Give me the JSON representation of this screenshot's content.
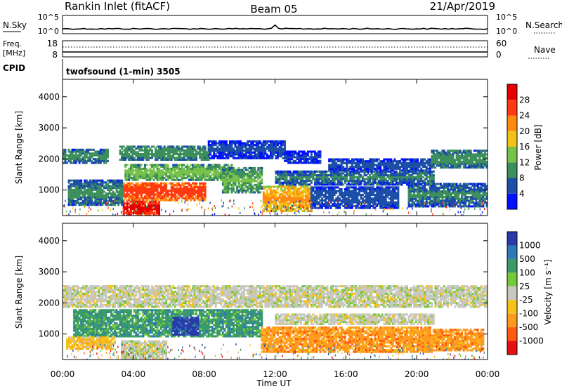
{
  "header": {
    "station": "Rankin Inlet (fitACF)",
    "beam": "Beam 05",
    "date": "21/Apr/2019"
  },
  "strip": {
    "nsky_label": "N.Sky",
    "nsky_ticks": [
      "10^5",
      "10^0"
    ],
    "nsearch_label": "N.Search",
    "nsearch_ticks": [
      "10^5",
      "10^0"
    ],
    "freq_label_1": "Freq.",
    "freq_label_2": "[MHz]",
    "freq_ticks": [
      "18",
      "8"
    ],
    "nave_label": "Nave",
    "nave_ticks": [
      "60",
      "0"
    ],
    "cpid_label": "CPID",
    "cpid_value": "twofsound (1-min) 3505"
  },
  "chart_data": [
    {
      "type": "heatmap",
      "panel": "power",
      "ylabel": "Slant Range [km]",
      "yticks": [
        "1000",
        "2000",
        "3000",
        "4000"
      ],
      "ylim": [
        180,
        4560
      ],
      "xlim_hours": [
        0,
        24
      ],
      "colorbar_label": "Power [dB]",
      "colorbar_ticks": [
        "4",
        "8",
        "12",
        "16",
        "20",
        "24",
        "28"
      ],
      "colorbar_range": [
        0,
        32
      ],
      "colors": [
        "#0010ff",
        "#1d4fa8",
        "#3d8f5c",
        "#78c24c",
        "#f2c21a",
        "#ff8a10",
        "#ff3a10",
        "#e60000"
      ],
      "regions": [
        {
          "t0": 0.0,
          "t1": 2.6,
          "r0": 1850,
          "r1": 2300,
          "level": 10
        },
        {
          "t0": 3.2,
          "t1": 8.2,
          "r0": 1950,
          "r1": 2400,
          "level": 12
        },
        {
          "t0": 8.2,
          "t1": 12.5,
          "r0": 2000,
          "r1": 2600,
          "level": 6
        },
        {
          "t0": 12.5,
          "t1": 14.5,
          "r0": 1850,
          "r1": 2250,
          "level": 5
        },
        {
          "t0": 15.0,
          "t1": 20.8,
          "r0": 1600,
          "r1": 2000,
          "level": 7
        },
        {
          "t0": 20.8,
          "t1": 24.0,
          "r0": 1700,
          "r1": 2250,
          "level": 11
        },
        {
          "t0": 3.5,
          "t1": 9.5,
          "r0": 1300,
          "r1": 1800,
          "level": 14
        },
        {
          "t0": 12.0,
          "t1": 21.0,
          "r0": 1150,
          "r1": 1600,
          "level": 9
        },
        {
          "t0": 3.3,
          "t1": 8.0,
          "r0": 650,
          "r1": 1250,
          "level": 27
        },
        {
          "t0": 3.4,
          "t1": 5.4,
          "r0": 180,
          "r1": 650,
          "level": 30
        },
        {
          "t0": 0.3,
          "t1": 3.4,
          "r0": 500,
          "r1": 1300,
          "level": 10
        },
        {
          "t0": 11.3,
          "t1": 14.0,
          "r0": 300,
          "r1": 1100,
          "level": 21
        },
        {
          "t0": 14.0,
          "t1": 19.0,
          "r0": 400,
          "r1": 1100,
          "level": 8
        },
        {
          "t0": 19.5,
          "t1": 24.0,
          "r0": 450,
          "r1": 1200,
          "level": 9
        },
        {
          "t0": 9.0,
          "t1": 11.2,
          "r0": 900,
          "r1": 1700,
          "level": 13
        }
      ]
    },
    {
      "type": "heatmap",
      "panel": "velocity",
      "ylabel": "Slant Range [km]",
      "yticks": [
        "1000",
        "2000",
        "3000",
        "4000"
      ],
      "ylim": [
        180,
        4560
      ],
      "xlim_hours": [
        0,
        24
      ],
      "xticks": [
        "00:00",
        "04:00",
        "08:00",
        "12:00",
        "16:00",
        "20:00",
        "00:00"
      ],
      "xlabel": "Time UT",
      "colorbar_label": "Velocity [m s⁻¹]",
      "colorbar_ticks": [
        "1000",
        "500",
        "100",
        "25",
        "-25",
        "-100",
        "-500",
        "-1000"
      ],
      "colors": [
        "#2a3aa8",
        "#2f78b8",
        "#3a9a6a",
        "#74c93a",
        "#c8c8c0",
        "#f5c21a",
        "#ff9a20",
        "#ff5a10",
        "#e61010"
      ],
      "regions": [
        {
          "t0": 0.0,
          "t1": 24.0,
          "r0": 1850,
          "r1": 2550,
          "cls": 4
        },
        {
          "t0": 0.6,
          "t1": 11.2,
          "r0": 900,
          "r1": 1750,
          "cls": 2
        },
        {
          "t0": 6.2,
          "t1": 7.6,
          "r0": 950,
          "r1": 1550,
          "cls": 0
        },
        {
          "t0": 3.3,
          "t1": 5.8,
          "r0": 200,
          "r1": 800,
          "cls": 4
        },
        {
          "t0": 11.2,
          "t1": 20.8,
          "r0": 400,
          "r1": 1200,
          "cls": 6
        },
        {
          "t0": 12.0,
          "t1": 21.0,
          "r0": 1300,
          "r1": 1650,
          "cls": 4
        },
        {
          "t0": 20.0,
          "t1": 23.8,
          "r0": 450,
          "r1": 1150,
          "cls": 6
        },
        {
          "t0": 0.2,
          "t1": 3.0,
          "r0": 500,
          "r1": 900,
          "cls": 5
        }
      ]
    }
  ]
}
